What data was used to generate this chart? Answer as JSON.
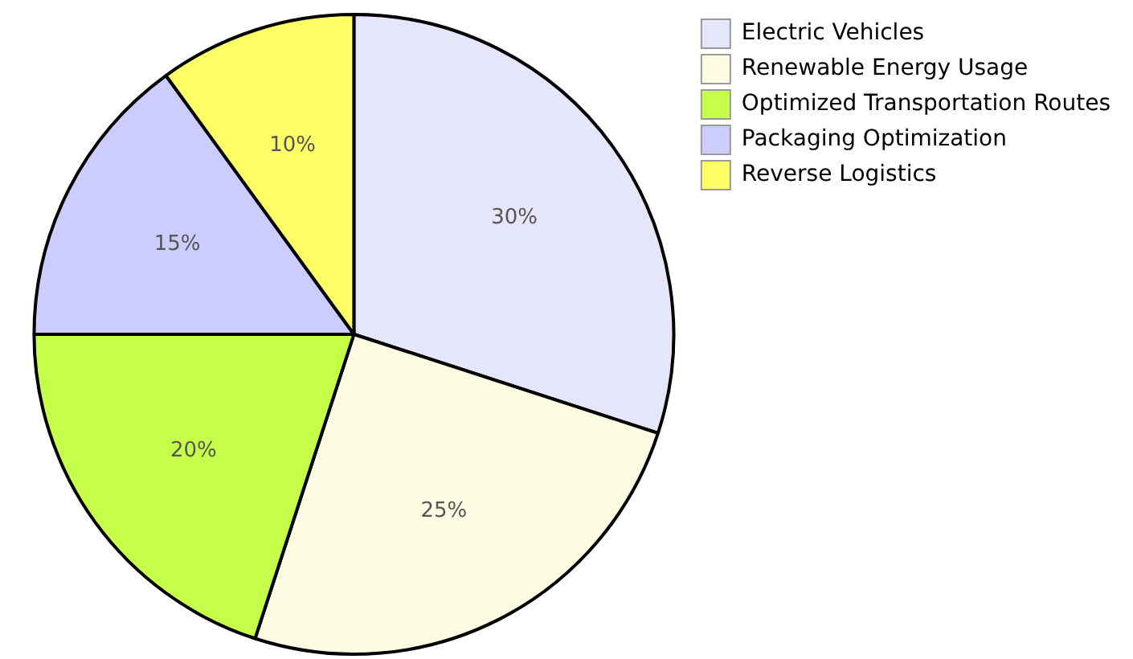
{
  "chart_data": {
    "type": "pie",
    "categories": [
      "Electric Vehicles",
      "Renewable Energy Usage",
      "Optimized Transportation Routes",
      "Packaging Optimization",
      "Reverse Logistics"
    ],
    "values": [
      30,
      25,
      20,
      15,
      10
    ],
    "colors": [
      "#e6e6fa",
      "#fdfde4",
      "#c6ff4a",
      "#ccccff",
      "#ffff66"
    ],
    "value_labels": [
      "30%",
      "25%",
      "20%",
      "15%",
      "10%"
    ],
    "legend": "top right"
  }
}
